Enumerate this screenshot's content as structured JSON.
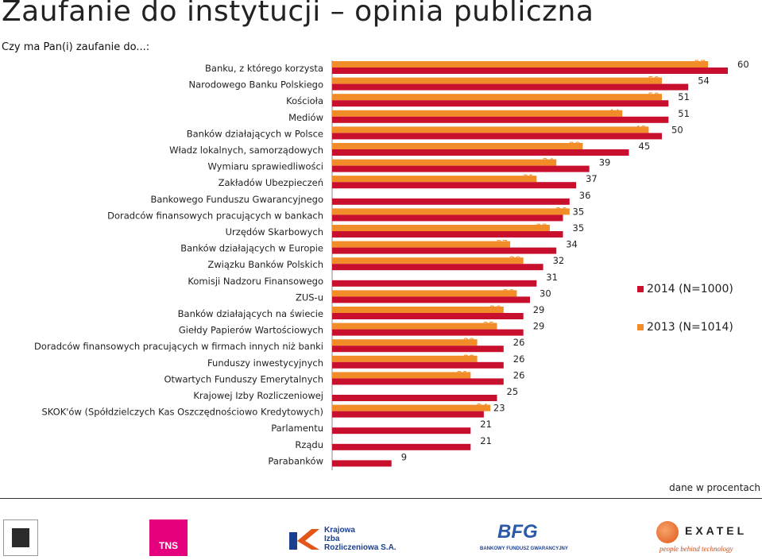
{
  "title": "Zaufanie do instytucji – opinia publiczna",
  "subtitle": "Czy ma Pan(i) zaufanie do...:",
  "note": "dane w procentach",
  "colors": {
    "s2014": "#c8102e",
    "s2013": "#f28c28"
  },
  "logos": {
    "tns": "TNS",
    "kir": [
      "Krajowa",
      "Izba",
      "Rozliczeniowa S.A."
    ],
    "bfg": "BFG",
    "bfg_sub": "BANKOWY FUNDUSZ GWARANCYJNY",
    "exatel": "EXATEL",
    "exatel_tag": "people behind technology"
  },
  "chart_data": {
    "type": "bar",
    "orientation": "horizontal",
    "categories": [
      "Banku, z którego korzysta",
      "Narodowego Banku Polskiego",
      "Kościoła",
      "Mediów",
      "Banków działających w Polsce",
      "Władz lokalnych, samorządowych",
      "Wymiaru sprawiedliwości",
      "Zakładów Ubezpieczeń",
      "Bankowego Funduszu Gwarancyjnego",
      "Doradców finansowych pracujących w bankach",
      "Urzędów Skarbowych",
      "Banków działających w Europie",
      "Związku Banków Polskich",
      "Komisji Nadzoru Finansowego",
      "ZUS-u",
      "Banków działających na świecie",
      "Giełdy Papierów Wartościowych",
      "Doradców finansowych pracujących w firmach innych niż banki",
      "Funduszy inwestycyjnych",
      "Otwartych Funduszy Emerytalnych",
      "Krajowej Izby Rozliczeniowej",
      "SKOK'ów (Spółdzielczych Kas Oszczędnościowo Kredytowych)",
      "Parlamentu",
      "Rządu",
      "Parabanków"
    ],
    "series": [
      {
        "name": "2014 (N=1000)",
        "values": [
          60,
          54,
          51,
          51,
          50,
          45,
          39,
          37,
          36,
          35,
          35,
          34,
          32,
          31,
          30,
          29,
          29,
          26,
          26,
          26,
          25,
          23,
          21,
          21,
          9
        ]
      },
      {
        "name": "2013 (N=1014)",
        "values": [
          57,
          50,
          50,
          44,
          48,
          38,
          34,
          31,
          null,
          36,
          33,
          27,
          29,
          null,
          28,
          26,
          25,
          22,
          22,
          21,
          null,
          24,
          null,
          null,
          null
        ]
      }
    ],
    "legend_position": "right",
    "grid": false
  }
}
